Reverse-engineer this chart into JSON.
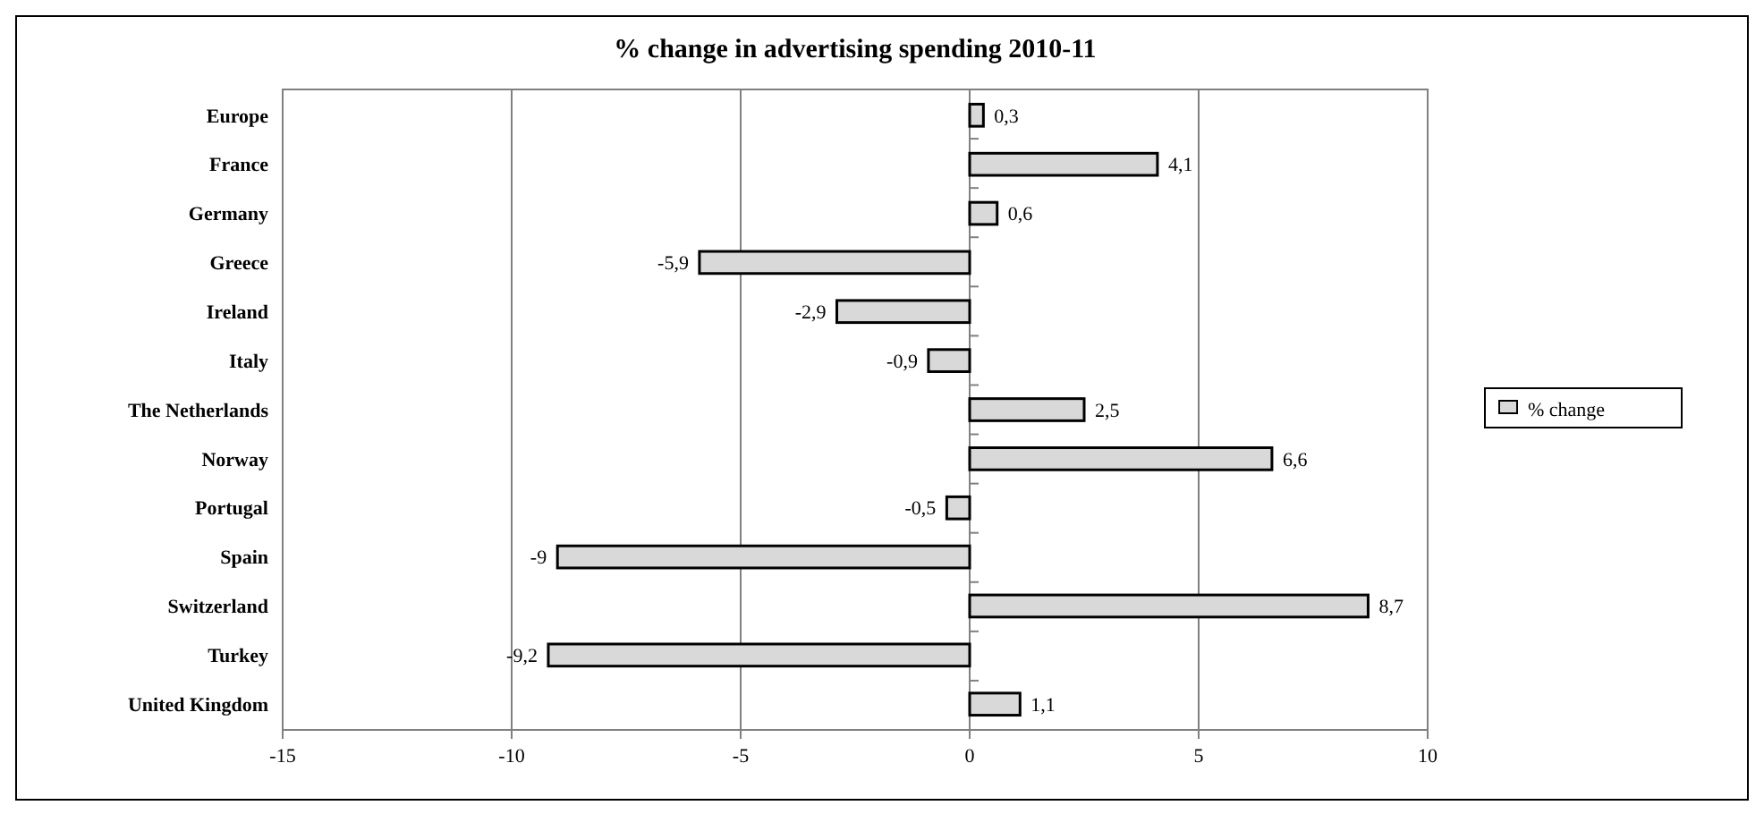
{
  "chart_data": {
    "type": "bar",
    "orientation": "horizontal",
    "title": "% change in advertising spending 2010-11",
    "categories": [
      "Europe",
      "France",
      "Germany",
      "Greece",
      "Ireland",
      "Italy",
      "The Netherlands",
      "Norway",
      "Portugal",
      "Spain",
      "Switzerland",
      "Turkey",
      "United Kingdom"
    ],
    "series": [
      {
        "name": "% change",
        "color": "#d9d9d9",
        "values": [
          0.3,
          4.1,
          0.6,
          -5.9,
          -2.9,
          -0.9,
          2.5,
          6.6,
          -0.5,
          -9,
          8.7,
          -9.2,
          1.1
        ],
        "value_labels": [
          "0,3",
          "4,1",
          "0,6",
          "-5,9",
          "-2,9",
          "-0,9",
          "2,5",
          "6,6",
          "-0,5",
          "-9",
          "8,7",
          "-9,2",
          "1,1"
        ]
      }
    ],
    "xlim": [
      -15,
      10
    ],
    "xticks": [
      -15,
      -10,
      -5,
      0,
      5,
      10
    ],
    "grid": "x",
    "legend": "right"
  }
}
